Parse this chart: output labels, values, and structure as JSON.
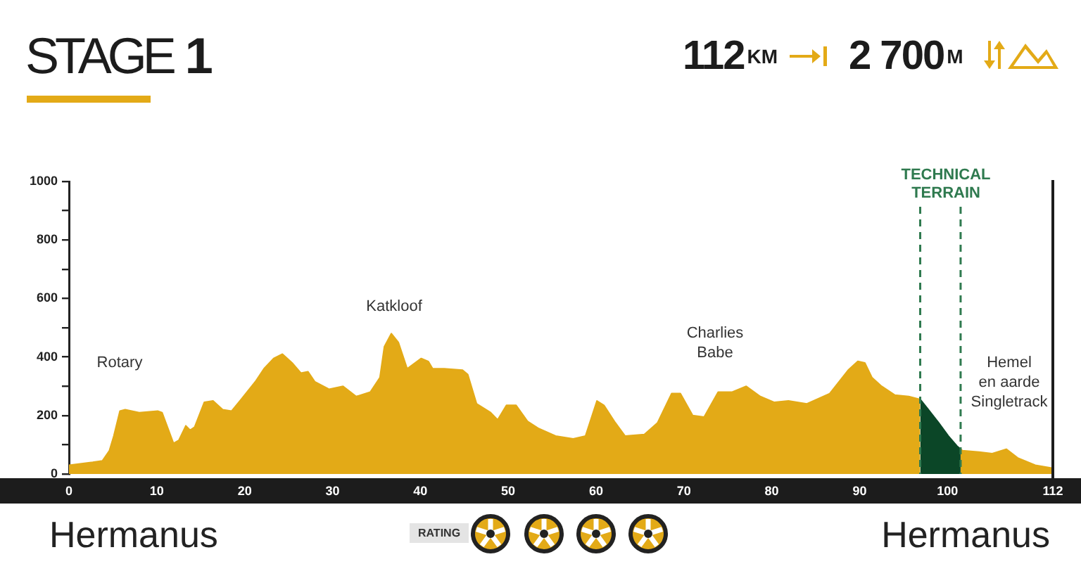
{
  "chart_data": {
    "type": "area",
    "title": "STAGE 1",
    "xlim": [
      0,
      112
    ],
    "xticks": [
      0,
      10,
      20,
      30,
      40,
      50,
      60,
      70,
      80,
      90,
      100,
      112
    ],
    "ylim": [
      0,
      1000
    ],
    "yticks": [
      0,
      {
        "value": 100,
        "label": null
      },
      200,
      {
        "value": 300,
        "label": null
      },
      400,
      {
        "value": 500,
        "label": null
      },
      600,
      {
        "value": 700,
        "label": null
      },
      800,
      {
        "value": 900,
        "label": null
      },
      1000
    ],
    "series": [
      {
        "color": "#e3aa17",
        "x": [
          0,
          2.7,
          3.8,
          4.6,
          5.1,
          5.8,
          6.4,
          8.0,
          10.1,
          10.6,
          11.9,
          12.5,
          13.3,
          13.8,
          14.3,
          15.4,
          16.4,
          17.5,
          18.5,
          19.6,
          21.2,
          22.2,
          23.3,
          24.3,
          25.4,
          26.4,
          27.2,
          28.0,
          29.6,
          31.2,
          32.7,
          34.3,
          35.4,
          35.9,
          36.7,
          37.5,
          38.5,
          40.1,
          40.9,
          41.4,
          42.7,
          44.8,
          45.4,
          46.4,
          48.0,
          48.8,
          49.8,
          50.9,
          52.2,
          53.5,
          55.4,
          57.4,
          58.8,
          60.1,
          60.9,
          62.2,
          63.3,
          65.5,
          67.0,
          68.6,
          69.6,
          71.0,
          72.3,
          73.9,
          75.5,
          77.1,
          78.7,
          80.3,
          81.9,
          84.0,
          86.6,
          88.7,
          89.8,
          90.6,
          91.4,
          92.5,
          94.0,
          95.6,
          96.9,
          99.0,
          101.5,
          101.7,
          103.6,
          105.1,
          106.7,
          108.0,
          110.0,
          112
        ],
        "values": [
          30,
          40,
          45,
          80,
          130,
          215,
          220,
          210,
          215,
          210,
          105,
          115,
          165,
          150,
          160,
          245,
          250,
          220,
          215,
          255,
          315,
          360,
          395,
          410,
          380,
          345,
          350,
          315,
          290,
          300,
          265,
          280,
          330,
          435,
          480,
          450,
          360,
          395,
          385,
          360,
          360,
          355,
          340,
          240,
          210,
          185,
          235,
          235,
          180,
          155,
          130,
          120,
          130,
          250,
          235,
          175,
          130,
          135,
          175,
          275,
          275,
          200,
          195,
          280,
          280,
          300,
          265,
          245,
          250,
          240,
          275,
          355,
          385,
          380,
          330,
          300,
          270,
          265,
          255,
          null,
          85,
          80,
          75,
          70,
          85,
          55,
          30,
          20
        ]
      },
      {
        "color": "#0b4627",
        "x": [
          96.9,
          97.7,
          99.0,
          100.1,
          101.1,
          101.5
        ],
        "values": [
          255,
          225,
          175,
          130,
          95,
          85
        ]
      }
    ],
    "ref_lines": [
      {
        "axis": "x",
        "value": 96.9,
        "color": "#2f7a4f",
        "line_style": "dashed"
      },
      {
        "axis": "x",
        "value": 101.5,
        "color": "#2f7a4f",
        "line_style": "dashed"
      }
    ],
    "annotations": [
      "Rotary",
      "Katkloof",
      "Charlies\nBabe",
      "Hemel\nen aarde\nSingletrack",
      "TECHNICAL TERRAIN",
      "112KM",
      "2 700M",
      "Hermanus",
      "Hermanus",
      "RATING"
    ],
    "grid": false,
    "legend": false,
    "marker": "none"
  }
}
